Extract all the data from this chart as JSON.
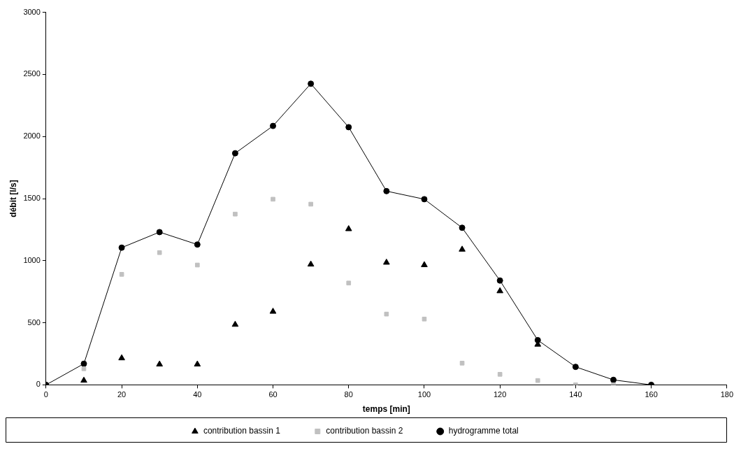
{
  "chart_data": {
    "type": "scatter",
    "xlabel": "temps [min]",
    "ylabel": "débit [l/s]",
    "x": [
      0,
      10,
      20,
      30,
      40,
      50,
      60,
      70,
      80,
      90,
      100,
      110,
      120,
      130,
      140,
      150,
      160
    ],
    "xlim": [
      0,
      180
    ],
    "xticks": [
      0,
      20,
      40,
      60,
      80,
      100,
      120,
      140,
      160,
      180
    ],
    "ylim": [
      0,
      3000
    ],
    "yticks": [
      0,
      500,
      1000,
      1500,
      2000,
      2500,
      3000
    ],
    "grid": false,
    "legend": "bottom",
    "series": [
      {
        "name": "contribution bassin 1",
        "marker": "triangle",
        "color": "#000000",
        "values": [
          null,
          35,
          215,
          165,
          165,
          485,
          590,
          970,
          1255,
          985,
          965,
          1090,
          755,
          325,
          null,
          null,
          null
        ]
      },
      {
        "name": "contribution bassin 2",
        "marker": "square",
        "color": "#c0c0c0",
        "values": [
          null,
          130,
          890,
          1065,
          965,
          1375,
          1495,
          1455,
          820,
          570,
          530,
          175,
          85,
          35,
          0,
          0,
          null
        ]
      },
      {
        "name": "hydrogramme total",
        "type": "line",
        "marker": "circle",
        "line_style": "solid",
        "color": "#000000",
        "values": [
          0,
          170,
          1105,
          1230,
          1130,
          1865,
          2085,
          2425,
          2075,
          1560,
          1495,
          1265,
          840,
          360,
          145,
          40,
          0
        ]
      }
    ]
  }
}
